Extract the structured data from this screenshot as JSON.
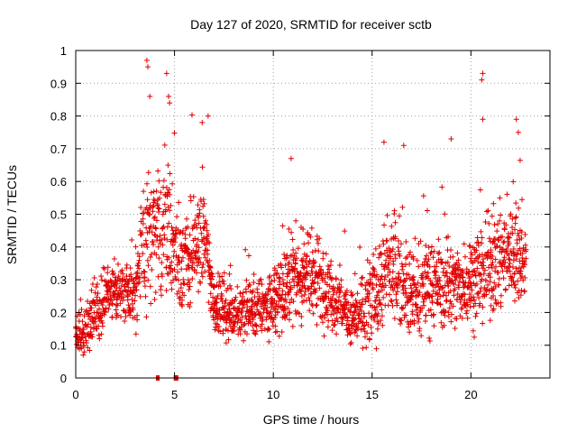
{
  "chart_data": {
    "type": "scatter",
    "title": "Day 127 of 2020, SRMTID for receiver sctb",
    "xlabel": "GPS time / hours",
    "ylabel": "SRMTID / TECUs",
    "xlim": [
      0,
      24
    ],
    "ylim": [
      0,
      1
    ],
    "xticks": [
      0,
      5,
      10,
      15,
      20
    ],
    "yticks": [
      0,
      0.1,
      0.2,
      0.3,
      0.4,
      0.5,
      0.6,
      0.7,
      0.8,
      0.9,
      1
    ],
    "xtick_labels": [
      "0",
      "5",
      "10",
      "15",
      "20"
    ],
    "ytick_labels": [
      "0",
      "0.1",
      "0.2",
      "0.3",
      "0.4",
      "0.5",
      "0.6",
      "0.7",
      "0.8",
      "0.9",
      "1"
    ],
    "grid": true,
    "marker": "plus",
    "color": "#e00000",
    "zero_value_points": [
      4.15,
      5.05,
      5.1
    ],
    "envelope": [
      {
        "t": 0.0,
        "mean": 0.12,
        "spread": 0.05
      },
      {
        "t": 0.5,
        "mean": 0.15,
        "spread": 0.08
      },
      {
        "t": 1.0,
        "mean": 0.2,
        "spread": 0.08
      },
      {
        "t": 1.5,
        "mean": 0.25,
        "spread": 0.08
      },
      {
        "t": 2.0,
        "mean": 0.27,
        "spread": 0.08
      },
      {
        "t": 2.5,
        "mean": 0.28,
        "spread": 0.08
      },
      {
        "t": 3.0,
        "mean": 0.25,
        "spread": 0.09
      },
      {
        "t": 3.5,
        "mean": 0.45,
        "spread": 0.22
      },
      {
        "t": 4.0,
        "mean": 0.42,
        "spread": 0.18
      },
      {
        "t": 4.5,
        "mean": 0.5,
        "spread": 0.2
      },
      {
        "t": 5.0,
        "mean": 0.4,
        "spread": 0.15
      },
      {
        "t": 5.5,
        "mean": 0.35,
        "spread": 0.15
      },
      {
        "t": 6.0,
        "mean": 0.38,
        "spread": 0.14
      },
      {
        "t": 6.5,
        "mean": 0.45,
        "spread": 0.15
      },
      {
        "t": 7.0,
        "mean": 0.22,
        "spread": 0.08
      },
      {
        "t": 8.0,
        "mean": 0.2,
        "spread": 0.08
      },
      {
        "t": 9.0,
        "mean": 0.21,
        "spread": 0.08
      },
      {
        "t": 10.0,
        "mean": 0.22,
        "spread": 0.09
      },
      {
        "t": 11.0,
        "mean": 0.3,
        "spread": 0.12
      },
      {
        "t": 12.0,
        "mean": 0.32,
        "spread": 0.12
      },
      {
        "t": 13.0,
        "mean": 0.25,
        "spread": 0.1
      },
      {
        "t": 14.0,
        "mean": 0.18,
        "spread": 0.07
      },
      {
        "t": 15.0,
        "mean": 0.22,
        "spread": 0.12
      },
      {
        "t": 16.0,
        "mean": 0.35,
        "spread": 0.15
      },
      {
        "t": 17.0,
        "mean": 0.25,
        "spread": 0.12
      },
      {
        "t": 18.0,
        "mean": 0.28,
        "spread": 0.12
      },
      {
        "t": 19.0,
        "mean": 0.28,
        "spread": 0.11
      },
      {
        "t": 20.0,
        "mean": 0.3,
        "spread": 0.12
      },
      {
        "t": 21.0,
        "mean": 0.35,
        "spread": 0.14
      },
      {
        "t": 22.0,
        "mean": 0.38,
        "spread": 0.14
      },
      {
        "t": 22.8,
        "mean": 0.35,
        "spread": 0.12
      }
    ],
    "spikes": [
      {
        "t": 3.6,
        "value": 0.97
      },
      {
        "t": 3.65,
        "value": 0.95
      },
      {
        "t": 3.75,
        "value": 0.86
      },
      {
        "t": 4.6,
        "value": 0.93
      },
      {
        "t": 4.7,
        "value": 0.86
      },
      {
        "t": 4.75,
        "value": 0.84
      },
      {
        "t": 6.4,
        "value": 0.78
      },
      {
        "t": 6.7,
        "value": 0.8
      },
      {
        "t": 10.9,
        "value": 0.67
      },
      {
        "t": 15.6,
        "value": 0.72
      },
      {
        "t": 16.6,
        "value": 0.71
      },
      {
        "t": 19.0,
        "value": 0.73
      },
      {
        "t": 20.6,
        "value": 0.93
      },
      {
        "t": 20.55,
        "value": 0.91
      },
      {
        "t": 20.6,
        "value": 0.79
      },
      {
        "t": 22.3,
        "value": 0.79
      },
      {
        "t": 22.4,
        "value": 0.75
      }
    ]
  }
}
